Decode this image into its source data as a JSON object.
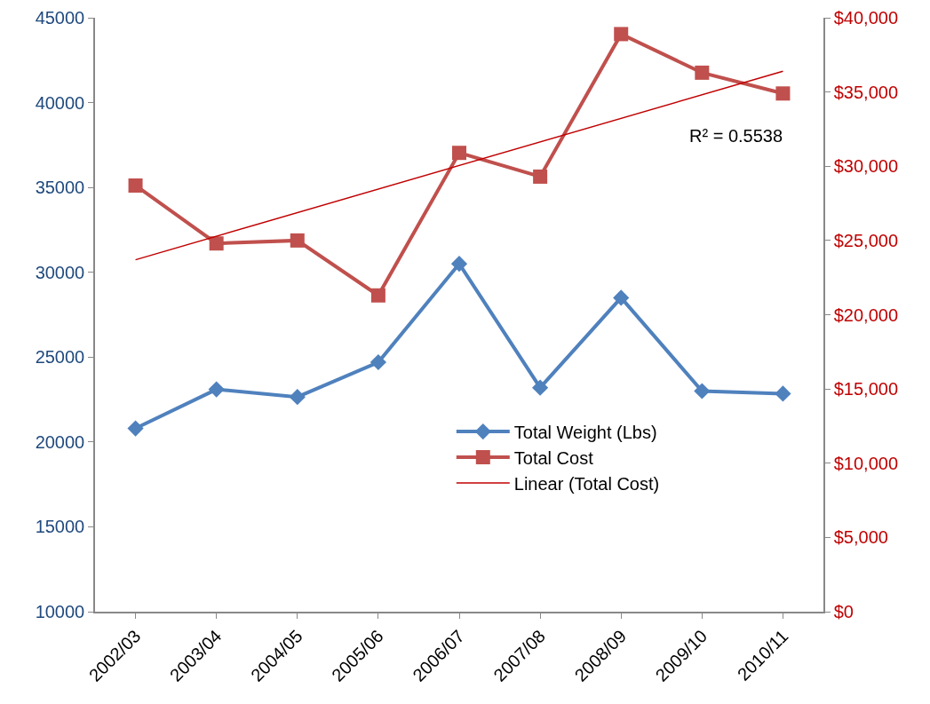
{
  "chart_data": {
    "type": "line",
    "categories": [
      "2002/03",
      "2003/04",
      "2004/05",
      "2005/06",
      "2006/07",
      "2007/08",
      "2008/09",
      "2009/10",
      "2010/11"
    ],
    "series": [
      {
        "name": "Total Weight (Lbs)",
        "color": "#4f81bd",
        "marker": "diamond",
        "values": [
          20800,
          23100,
          22650,
          24700,
          30500,
          23200,
          28500,
          23000,
          22850
        ]
      },
      {
        "name": "Total Cost",
        "color": "#c0504d",
        "marker": "square",
        "axis": "y2",
        "values": [
          28700,
          24800,
          25000,
          21300,
          30900,
          29300,
          38900,
          36300,
          34900
        ]
      },
      {
        "name": "Linear (Total Cost)",
        "color": "#c00000",
        "marker": "none",
        "axis": "y2",
        "x": [
          "2002/03",
          "2010/11"
        ],
        "values": [
          23700,
          36400
        ]
      }
    ],
    "ylim": [
      10000,
      45000
    ],
    "yticks": [
      10000,
      15000,
      20000,
      25000,
      30000,
      35000,
      40000,
      45000
    ],
    "y2lim": [
      0,
      40000
    ],
    "y2ticks": [
      {
        "value": 0,
        "label": "$0"
      },
      {
        "value": 5000,
        "label": "$5,000"
      },
      {
        "value": 10000,
        "label": "$10,000"
      },
      {
        "value": 15000,
        "label": "$15,000"
      },
      {
        "value": 20000,
        "label": "$20,000"
      },
      {
        "value": 25000,
        "label": "$25,000"
      },
      {
        "value": 30000,
        "label": "$30,000"
      },
      {
        "value": 35000,
        "label": "$35,000"
      },
      {
        "value": 40000,
        "label": "$40,000"
      }
    ],
    "annotations": [
      "R² = 0.5538"
    ],
    "grid": false,
    "legend": "right"
  }
}
